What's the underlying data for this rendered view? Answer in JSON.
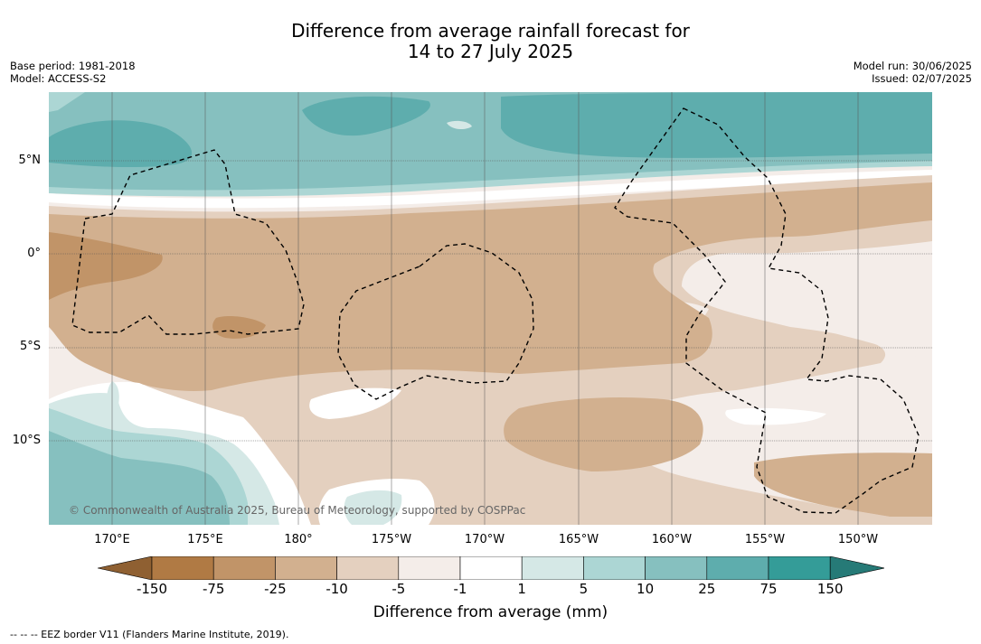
{
  "title_line1": "Difference from average rainfall forecast for",
  "title_line2": "14 to 27 July 2025",
  "base_period": "Base period: 1981-2018",
  "model": "Model: ACCESS-S2",
  "model_run": "Model run: 30/06/2025",
  "issued": "Issued: 02/07/2025",
  "copyright": "© Commonwealth of Australia 2025, Bureau of Meteorology, supported by COSPPac",
  "lat_labels": [
    "5°N",
    "0°",
    "5°S",
    "10°S"
  ],
  "lon_labels": [
    "170°E",
    "175°E",
    "180°",
    "175°W",
    "170°W",
    "165°W",
    "160°W",
    "155°W",
    "150°W"
  ],
  "colorbar": {
    "title": "Difference from average (mm)",
    "tick_labels": [
      "-150",
      "-75",
      "-25",
      "-10",
      "-5",
      "-1",
      "1",
      "5",
      "10",
      "25",
      "75",
      "150"
    ],
    "colors": [
      "#8f6032",
      "#b07a44",
      "#c19468",
      "#d2b08f",
      "#e4d0bf",
      "#f4ede9",
      "#ffffff",
      "#d5e8e6",
      "#acd6d4",
      "#86c0bf",
      "#5eadad",
      "#349c98",
      "#267a77"
    ]
  },
  "footnote": "--  --  -- EEZ border V11 (Flanders Marine Institute, 2019)."
}
